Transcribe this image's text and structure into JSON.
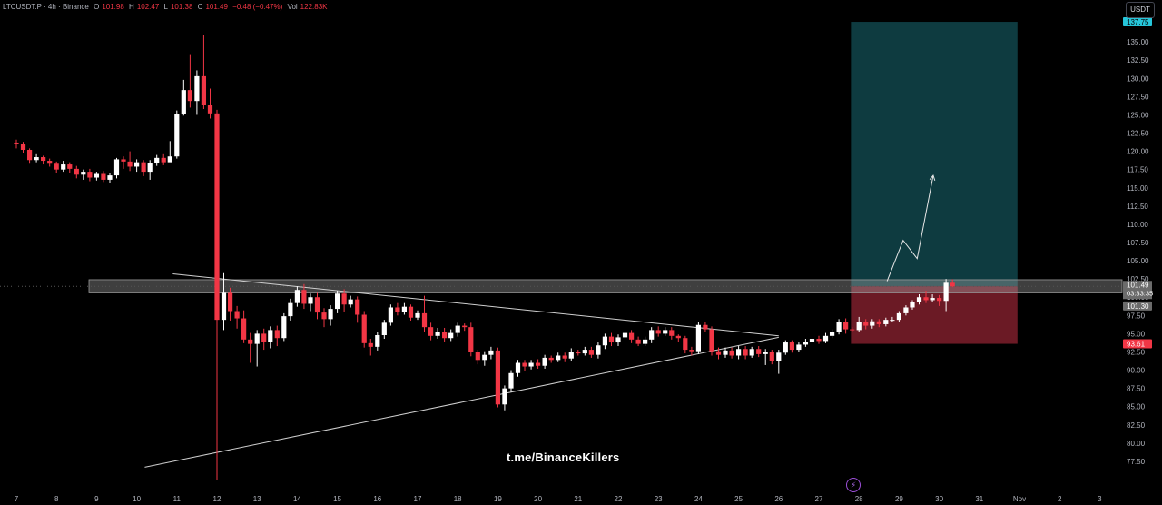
{
  "legend": {
    "symbol": "LTCUSDT.P · 4h · Binance",
    "open_key": "O",
    "open": "101.98",
    "high_key": "H",
    "high": "102.47",
    "low_key": "L",
    "low": "101.38",
    "close_key": "C",
    "close": "101.49",
    "change": "−0.48 (−0.47%)",
    "vol_key": "Vol",
    "vol": "122.83K"
  },
  "currency": "USDT",
  "watermark": "t.me/BinanceKillers",
  "bolt_icon": "lightning-icon",
  "colors": {
    "up": "#ffffff",
    "down": "#f23645",
    "target": "#0e3b40",
    "stop": "#6b1a25",
    "target_label": "#26c6da",
    "stop_label": "#f23645"
  },
  "chart_data": {
    "type": "candlestick",
    "timeframe": "4h",
    "ylim": [
      76,
      139
    ],
    "y_ticks": [
      "77.50",
      "80.00",
      "82.50",
      "85.00",
      "87.50",
      "90.00",
      "92.50",
      "95.00",
      "97.50",
      "100.00",
      "102.50",
      "105.00",
      "107.50",
      "110.00",
      "112.50",
      "115.00",
      "117.50",
      "120.00",
      "122.50",
      "125.00",
      "127.50",
      "130.00",
      "132.50",
      "135.00"
    ],
    "x_labels": [
      "7",
      "8",
      "9",
      "10",
      "11",
      "12",
      "13",
      "14",
      "15",
      "16",
      "17",
      "18",
      "19",
      "20",
      "21",
      "22",
      "23",
      "24",
      "25",
      "26",
      "27",
      "28",
      "29",
      "30",
      "31",
      "Nov",
      "2",
      "3"
    ],
    "price_labels": {
      "target": "137.75",
      "current": "101.49",
      "countdown": "03:33:35",
      "support": "101.30",
      "stop": "93.61"
    },
    "position": {
      "entry": 101.5,
      "target": 137.75,
      "stop": 93.61,
      "start_day": 27.8,
      "end_day": 31.95
    },
    "resistance_zone": {
      "low": 100.6,
      "high": 102.4
    },
    "triangle": {
      "upper": [
        [
          10.9,
          103.2
        ],
        [
          26.0,
          94.7
        ]
      ],
      "lower": [
        [
          10.2,
          76.7
        ],
        [
          26.0,
          94.5
        ]
      ]
    },
    "projection": [
      [
        28.7,
        102.2
      ],
      [
        29.1,
        107.8
      ],
      [
        29.45,
        105.3
      ],
      [
        29.85,
        116.7
      ]
    ],
    "candles": [
      [
        7.0,
        121.2,
        121.0,
        121.6,
        120.4
      ],
      [
        7.17,
        121.0,
        120.2,
        121.3,
        119.8
      ],
      [
        7.33,
        120.2,
        118.8,
        120.4,
        118.3
      ],
      [
        7.5,
        118.8,
        119.2,
        119.6,
        118.5
      ],
      [
        7.67,
        119.2,
        118.7,
        119.4,
        118.2
      ],
      [
        7.83,
        118.7,
        118.3,
        119.0,
        117.9
      ],
      [
        8.0,
        118.3,
        117.5,
        118.6,
        117.0
      ],
      [
        8.17,
        117.5,
        118.2,
        118.7,
        117.2
      ],
      [
        8.33,
        118.2,
        117.6,
        118.5,
        117.0
      ],
      [
        8.5,
        117.6,
        116.8,
        118.0,
        116.3
      ],
      [
        8.67,
        116.8,
        117.2,
        117.5,
        116.1
      ],
      [
        8.83,
        117.2,
        116.4,
        117.6,
        115.9
      ],
      [
        9.0,
        116.4,
        116.9,
        117.2,
        116.0
      ],
      [
        9.17,
        116.9,
        116.1,
        117.3,
        115.8
      ],
      [
        9.33,
        116.1,
        116.7,
        117.0,
        115.7
      ],
      [
        9.5,
        116.7,
        118.9,
        119.1,
        116.3
      ],
      [
        9.67,
        118.9,
        118.6,
        119.3,
        117.6
      ],
      [
        9.83,
        118.6,
        117.9,
        120.0,
        117.3
      ],
      [
        10.0,
        117.9,
        118.5,
        118.9,
        117.2
      ],
      [
        10.17,
        118.5,
        117.2,
        118.8,
        116.6
      ],
      [
        10.33,
        117.2,
        118.4,
        118.8,
        116.1
      ],
      [
        10.5,
        118.4,
        119.1,
        119.5,
        118.0
      ],
      [
        10.67,
        119.1,
        118.5,
        119.6,
        118.1
      ],
      [
        10.83,
        118.5,
        119.3,
        121.4,
        119.0
      ],
      [
        11.0,
        119.3,
        125.1,
        125.6,
        119.0
      ],
      [
        11.17,
        125.1,
        128.4,
        129.8,
        124.9
      ],
      [
        11.33,
        128.4,
        126.9,
        133.2,
        126.0
      ],
      [
        11.5,
        126.9,
        130.3,
        131.1,
        125.0
      ],
      [
        11.67,
        130.3,
        126.3,
        136.0,
        125.8
      ],
      [
        11.83,
        126.3,
        125.2,
        128.6,
        124.5
      ],
      [
        12.0,
        125.2,
        96.9,
        125.7,
        75.0
      ],
      [
        12.17,
        96.9,
        100.6,
        103.3,
        95.5
      ],
      [
        12.33,
        100.6,
        98.1,
        101.3,
        96.8
      ],
      [
        12.5,
        98.1,
        97.1,
        98.8,
        95.7
      ],
      [
        12.67,
        97.1,
        94.2,
        98.2,
        93.7
      ],
      [
        12.83,
        94.2,
        93.6,
        95.1,
        91.0
      ],
      [
        13.0,
        93.6,
        95.0,
        95.5,
        90.5
      ],
      [
        13.17,
        95.0,
        93.9,
        95.7,
        92.8
      ],
      [
        13.33,
        93.9,
        95.5,
        96.0,
        93.0
      ],
      [
        13.5,
        95.5,
        94.4,
        96.1,
        93.3
      ],
      [
        13.67,
        94.4,
        97.4,
        97.8,
        94.0
      ],
      [
        13.83,
        97.4,
        99.2,
        99.8,
        96.8
      ],
      [
        14.0,
        99.2,
        101.0,
        101.5,
        98.7
      ],
      [
        14.17,
        101.0,
        99.1,
        101.8,
        98.4
      ],
      [
        14.33,
        99.1,
        100.0,
        100.5,
        98.1
      ],
      [
        14.5,
        100.0,
        97.9,
        100.6,
        97.0
      ],
      [
        14.67,
        97.9,
        97.0,
        98.5,
        95.9
      ],
      [
        14.83,
        97.0,
        98.4,
        98.9,
        96.1
      ],
      [
        15.0,
        98.4,
        100.5,
        100.9,
        97.8
      ],
      [
        15.17,
        100.5,
        99.0,
        101.1,
        98.0
      ],
      [
        15.33,
        99.0,
        99.7,
        100.2,
        98.6
      ],
      [
        15.5,
        99.7,
        97.6,
        100.1,
        96.5
      ],
      [
        15.67,
        97.6,
        93.7,
        98.1,
        93.1
      ],
      [
        15.83,
        93.7,
        93.2,
        94.3,
        92.0
      ],
      [
        16.0,
        93.2,
        94.8,
        95.3,
        92.7
      ],
      [
        16.17,
        94.8,
        96.5,
        96.9,
        94.3
      ],
      [
        16.33,
        96.5,
        98.6,
        99.0,
        96.1
      ],
      [
        16.5,
        98.6,
        98.0,
        99.2,
        97.5
      ],
      [
        16.67,
        98.0,
        98.7,
        99.2,
        97.6
      ],
      [
        16.83,
        98.7,
        97.2,
        99.0,
        96.8
      ],
      [
        17.0,
        97.2,
        97.8,
        98.2,
        96.9
      ],
      [
        17.17,
        97.8,
        95.9,
        100.2,
        95.2
      ],
      [
        17.33,
        95.9,
        94.7,
        96.5,
        94.1
      ],
      [
        17.5,
        94.7,
        95.3,
        95.8,
        94.3
      ],
      [
        17.67,
        95.3,
        94.4,
        95.8,
        93.9
      ],
      [
        17.83,
        94.4,
        95.1,
        95.6,
        94.0
      ],
      [
        18.0,
        95.1,
        96.1,
        96.5,
        94.6
      ],
      [
        18.17,
        96.1,
        95.9,
        96.4,
        95.4
      ],
      [
        18.33,
        95.9,
        92.5,
        96.5,
        91.9
      ],
      [
        18.5,
        92.5,
        91.4,
        92.8,
        90.8
      ],
      [
        18.67,
        91.4,
        92.1,
        92.6,
        90.6
      ],
      [
        18.83,
        92.1,
        92.7,
        93.2,
        91.5
      ],
      [
        19.0,
        92.7,
        85.3,
        93.1,
        84.9
      ],
      [
        19.17,
        85.3,
        87.5,
        87.9,
        84.5
      ],
      [
        19.33,
        87.5,
        89.6,
        90.0,
        87.0
      ],
      [
        19.5,
        89.6,
        91.0,
        91.4,
        89.1
      ],
      [
        19.67,
        91.0,
        90.5,
        91.4,
        89.9
      ],
      [
        19.83,
        90.5,
        91.0,
        91.4,
        90.1
      ],
      [
        20.0,
        91.0,
        90.6,
        91.5,
        90.2
      ],
      [
        20.17,
        90.6,
        91.7,
        92.1,
        90.2
      ],
      [
        20.33,
        91.7,
        91.4,
        92.0,
        91.0
      ],
      [
        20.5,
        91.4,
        92.0,
        92.4,
        91.1
      ],
      [
        20.67,
        92.0,
        91.6,
        92.4,
        91.1
      ],
      [
        20.83,
        91.6,
        92.5,
        93.0,
        91.2
      ],
      [
        21.0,
        92.5,
        92.3,
        92.8,
        92.0
      ],
      [
        21.17,
        92.3,
        92.8,
        93.2,
        92.0
      ],
      [
        21.33,
        92.8,
        92.1,
        93.2,
        91.7
      ],
      [
        21.5,
        92.1,
        93.4,
        93.8,
        91.6
      ],
      [
        21.67,
        93.4,
        94.6,
        95.0,
        92.9
      ],
      [
        21.83,
        94.6,
        93.8,
        95.1,
        93.3
      ],
      [
        22.0,
        93.8,
        94.5,
        94.9,
        93.3
      ],
      [
        22.17,
        94.5,
        95.1,
        95.4,
        94.2
      ],
      [
        22.33,
        95.1,
        94.2,
        95.5,
        93.7
      ],
      [
        22.5,
        94.2,
        93.6,
        94.6,
        93.3
      ],
      [
        22.67,
        93.6,
        94.2,
        94.6,
        93.3
      ],
      [
        22.83,
        94.2,
        95.5,
        95.9,
        93.7
      ],
      [
        23.0,
        95.5,
        95.0,
        96.0,
        94.6
      ],
      [
        23.17,
        95.0,
        95.5,
        95.9,
        94.7
      ],
      [
        23.33,
        95.5,
        94.7,
        95.9,
        94.2
      ],
      [
        23.5,
        94.7,
        94.4,
        94.9,
        93.9
      ],
      [
        23.67,
        94.4,
        92.8,
        94.7,
        92.3
      ],
      [
        23.83,
        92.8,
        92.6,
        93.2,
        92.0
      ],
      [
        24.0,
        92.6,
        96.2,
        96.6,
        92.2
      ],
      [
        24.17,
        96.2,
        95.6,
        96.6,
        95.2
      ],
      [
        24.33,
        95.6,
        92.6,
        96.0,
        92.0
      ],
      [
        24.5,
        92.6,
        92.1,
        93.1,
        91.5
      ],
      [
        24.67,
        92.1,
        92.7,
        93.1,
        91.7
      ],
      [
        24.83,
        92.7,
        92.0,
        93.1,
        91.6
      ],
      [
        25.0,
        92.0,
        92.9,
        93.3,
        91.5
      ],
      [
        25.17,
        92.9,
        92.0,
        93.3,
        91.5
      ],
      [
        25.33,
        92.0,
        92.9,
        93.2,
        91.7
      ],
      [
        25.5,
        92.9,
        92.2,
        93.3,
        91.8
      ],
      [
        25.67,
        92.2,
        92.5,
        92.9,
        90.7
      ],
      [
        25.83,
        92.5,
        91.2,
        92.8,
        90.8
      ],
      [
        26.0,
        91.2,
        92.4,
        92.8,
        89.5
      ],
      [
        26.17,
        92.4,
        93.8,
        94.1,
        92.1
      ],
      [
        26.33,
        93.8,
        92.8,
        94.1,
        92.4
      ],
      [
        26.5,
        92.8,
        93.5,
        93.9,
        92.5
      ],
      [
        26.67,
        93.5,
        93.9,
        94.3,
        93.2
      ],
      [
        26.83,
        93.9,
        94.3,
        94.6,
        93.5
      ],
      [
        27.0,
        94.3,
        94.0,
        94.7,
        93.6
      ],
      [
        27.17,
        94.0,
        94.7,
        95.1,
        93.7
      ],
      [
        27.33,
        94.7,
        95.2,
        95.6,
        94.4
      ],
      [
        27.5,
        95.2,
        96.6,
        97.0,
        94.9
      ],
      [
        27.67,
        96.6,
        95.6,
        97.1,
        95.0
      ],
      [
        27.83,
        95.6,
        95.5,
        95.9,
        95.2
      ],
      [
        28.0,
        95.5,
        96.6,
        97.3,
        95.2
      ],
      [
        28.17,
        96.6,
        96.1,
        97.0,
        95.6
      ],
      [
        28.33,
        96.1,
        96.7,
        97.0,
        95.7
      ],
      [
        28.5,
        96.7,
        96.3,
        97.0,
        95.9
      ],
      [
        28.67,
        96.3,
        96.9,
        97.2,
        96.0
      ],
      [
        28.83,
        96.9,
        96.9,
        97.3,
        96.6
      ],
      [
        29.0,
        96.9,
        97.8,
        98.1,
        96.6
      ],
      [
        29.17,
        97.8,
        98.6,
        98.9,
        97.5
      ],
      [
        29.33,
        98.6,
        99.3,
        99.6,
        98.3
      ],
      [
        29.5,
        99.3,
        100.0,
        100.4,
        99.0
      ],
      [
        29.67,
        100.0,
        99.6,
        100.9,
        99.2
      ],
      [
        29.83,
        99.6,
        99.9,
        100.4,
        99.3
      ],
      [
        30.0,
        99.9,
        99.5,
        100.3,
        98.8
      ],
      [
        30.17,
        99.5,
        101.98,
        102.5,
        98.1
      ],
      [
        30.33,
        101.98,
        101.49,
        102.47,
        101.38
      ]
    ]
  }
}
